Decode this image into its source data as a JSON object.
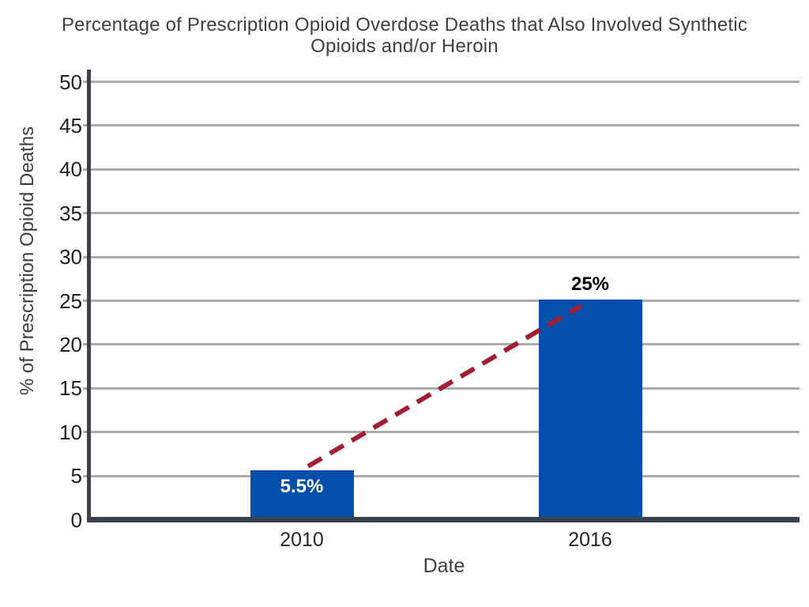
{
  "chart_data": {
    "type": "bar",
    "title": "Percentage of Prescription Opioid Overdose Deaths that Also Involved Synthetic Opioids and/or Heroin",
    "title_lines": [
      "Percentage of Prescription Opioid Overdose Deaths that Also Involved Synthetic",
      "Opioids and/or Heroin"
    ],
    "xlabel": "Date",
    "ylabel": "% of Prescription Opioid Deaths",
    "categories": [
      "2010",
      "2016"
    ],
    "values": [
      5.5,
      25
    ],
    "data_labels": [
      {
        "text": "5.5%",
        "position": "inside",
        "color": "#ffffff"
      },
      {
        "text": "25%",
        "position": "above",
        "color": "#000000"
      }
    ],
    "ylim": [
      0,
      50
    ],
    "yticks": [
      0,
      5,
      10,
      15,
      20,
      25,
      30,
      35,
      40,
      45,
      50
    ],
    "grid": true,
    "legend": false,
    "trendline": {
      "style": "dashed",
      "from_value": 6.1,
      "to_value": 24.4,
      "color": "#a31d33"
    },
    "colors": {
      "bar": "#0450ac",
      "axis": "#3a434d",
      "gridline": "#acacac",
      "trend": "#a31d33",
      "title_text": "#3f3f3f",
      "tick_text": "#1f1f1f"
    }
  }
}
